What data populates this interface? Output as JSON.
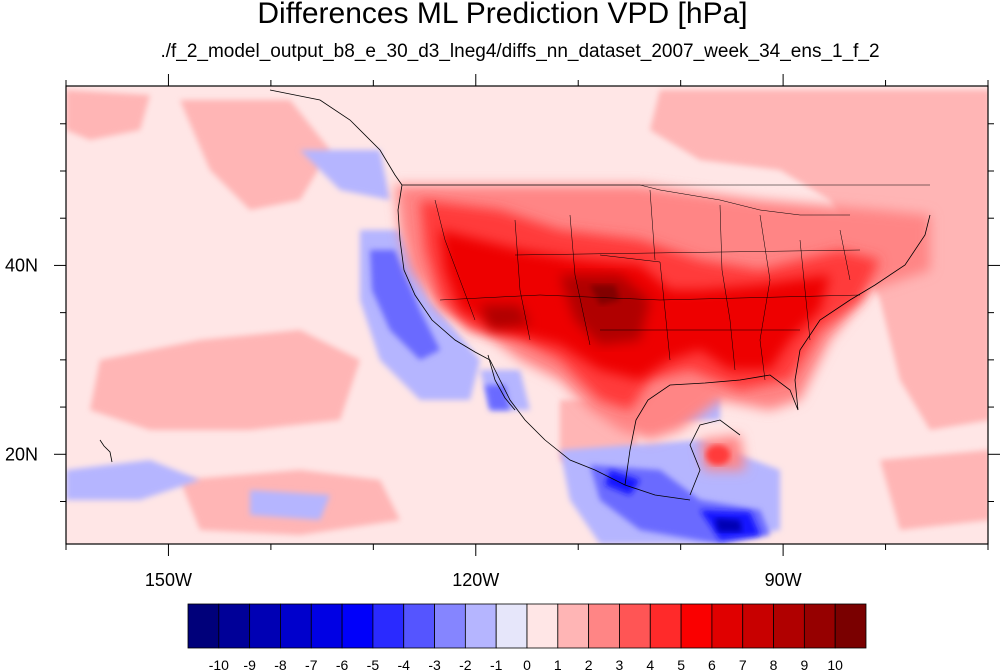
{
  "title": "Differences ML Prediction VPD [hPa]",
  "subtitle": "./f_2_model_output_b8_e_30_d3_lneg4/diffs_nn_dataset_2007_week_34_ens_1_f_2",
  "map": {
    "lon_range": [
      -160,
      -70
    ],
    "lat_range": [
      10.5,
      59
    ],
    "lon_ticks": [
      {
        "value": -150,
        "label": "150W"
      },
      {
        "value": -120,
        "label": "120W"
      },
      {
        "value": -90,
        "label": "90W"
      }
    ],
    "lat_ticks": [
      {
        "value": 40,
        "label": "40N"
      },
      {
        "value": 20,
        "label": "20N"
      }
    ]
  },
  "colorbar": {
    "labels": [
      "-10",
      "-9",
      "-8",
      "-7",
      "-6",
      "-5",
      "-4",
      "-3",
      "-2",
      "-1",
      "0",
      "1",
      "2",
      "3",
      "4",
      "5",
      "6",
      "7",
      "8",
      "9",
      "10"
    ],
    "colors": [
      "#00007a",
      "#000098",
      "#0000b4",
      "#0000cc",
      "#0000e4",
      "#0000fa",
      "#2a2aff",
      "#5555ff",
      "#8585ff",
      "#b5b5ff",
      "#e6e6fa",
      "#ffe6e6",
      "#ffb5b5",
      "#ff8585",
      "#ff5555",
      "#ff2a2a",
      "#fa0000",
      "#e00000",
      "#c80000",
      "#b00000",
      "#960000",
      "#7a0000"
    ]
  }
}
